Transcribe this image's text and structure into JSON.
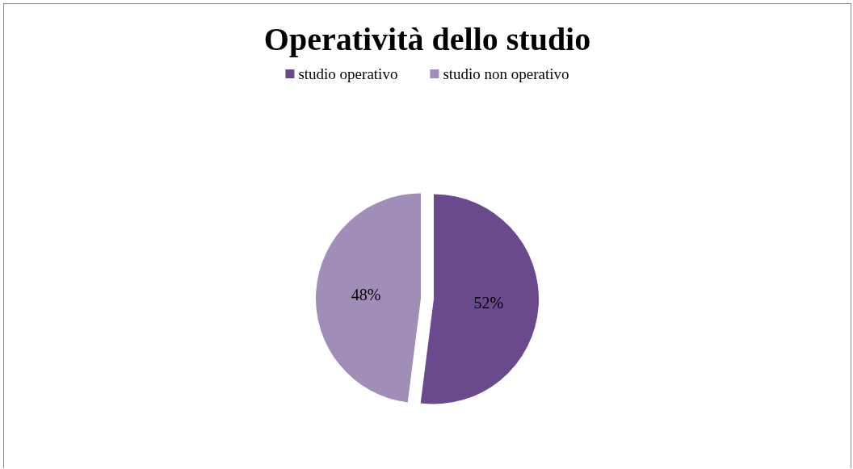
{
  "chart_data": {
    "type": "pie",
    "title": "Operatività dello studio",
    "categories": [
      "studio operativo",
      "studio non operativo"
    ],
    "values": [
      52,
      48
    ],
    "colors": [
      "#6a4a8c",
      "#a08db8"
    ],
    "value_labels": [
      "52%",
      "48%"
    ],
    "legend": "top"
  }
}
